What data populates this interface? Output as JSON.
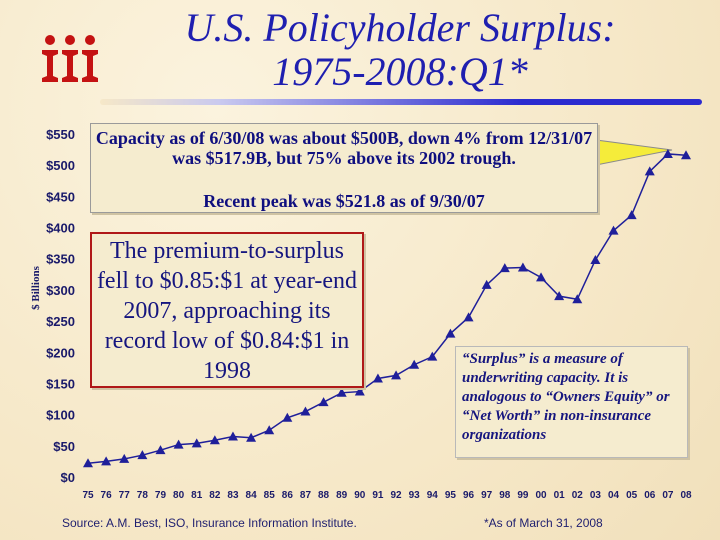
{
  "title": {
    "line1": "U.S. Policyholder Surplus:",
    "line2": "1975-2008:Q1*"
  },
  "colors": {
    "accent": "#1f1fb0",
    "series": "#1f1f9a",
    "border_red": "#b01818",
    "background": "#f7ecd2"
  },
  "logo_icon": "iii-logo-icon",
  "callouts": {
    "top_line1": "Capacity as of 6/30/08 was about $500B, down 4% from 12/31/07 was $517.9B, but 75% above its 2002 trough.",
    "top_line2": "Recent peak was $521.8 as of 9/30/07",
    "left": "The premium-to-surplus fell to $0.85:$1 at year-end 2007, approaching its record low of $0.84:$1 in 1998",
    "right": "“Surplus” is a measure of underwriting capacity. It is analogous to “Owners Equity” or “Net Worth” in non-insurance organizations"
  },
  "footer": {
    "source": "Source:  A.M. Best, ISO, Insurance Information Institute.",
    "note": "*As of March 31, 2008"
  },
  "chart_data": {
    "type": "line",
    "title": "U.S. Policyholder Surplus: 1975-2008:Q1*",
    "ylabel": "$ Billions",
    "xlabel": "",
    "ylim": [
      0,
      550
    ],
    "yticks": [
      "$0",
      "$50",
      "$100",
      "$150",
      "$200",
      "$250",
      "$300",
      "$350",
      "$400",
      "$450",
      "$500",
      "$550"
    ],
    "ytick_values": [
      0,
      50,
      100,
      150,
      200,
      250,
      300,
      350,
      400,
      450,
      500,
      550
    ],
    "categories": [
      "75",
      "76",
      "77",
      "78",
      "79",
      "80",
      "81",
      "82",
      "83",
      "84",
      "85",
      "86",
      "87",
      "88",
      "89",
      "90",
      "91",
      "92",
      "93",
      "94",
      "95",
      "96",
      "97",
      "98",
      "99",
      "00",
      "01",
      "02",
      "03",
      "04",
      "05",
      "06",
      "07",
      "08"
    ],
    "values": [
      22,
      25,
      29,
      35,
      43,
      52,
      54,
      59,
      65,
      63,
      75,
      95,
      105,
      120,
      135,
      137,
      158,
      163,
      180,
      193,
      230,
      256,
      308,
      335,
      336,
      320,
      290,
      285,
      348,
      395,
      420,
      490,
      518,
      516
    ],
    "marker": "triangle",
    "grid": false,
    "legend": "none"
  }
}
